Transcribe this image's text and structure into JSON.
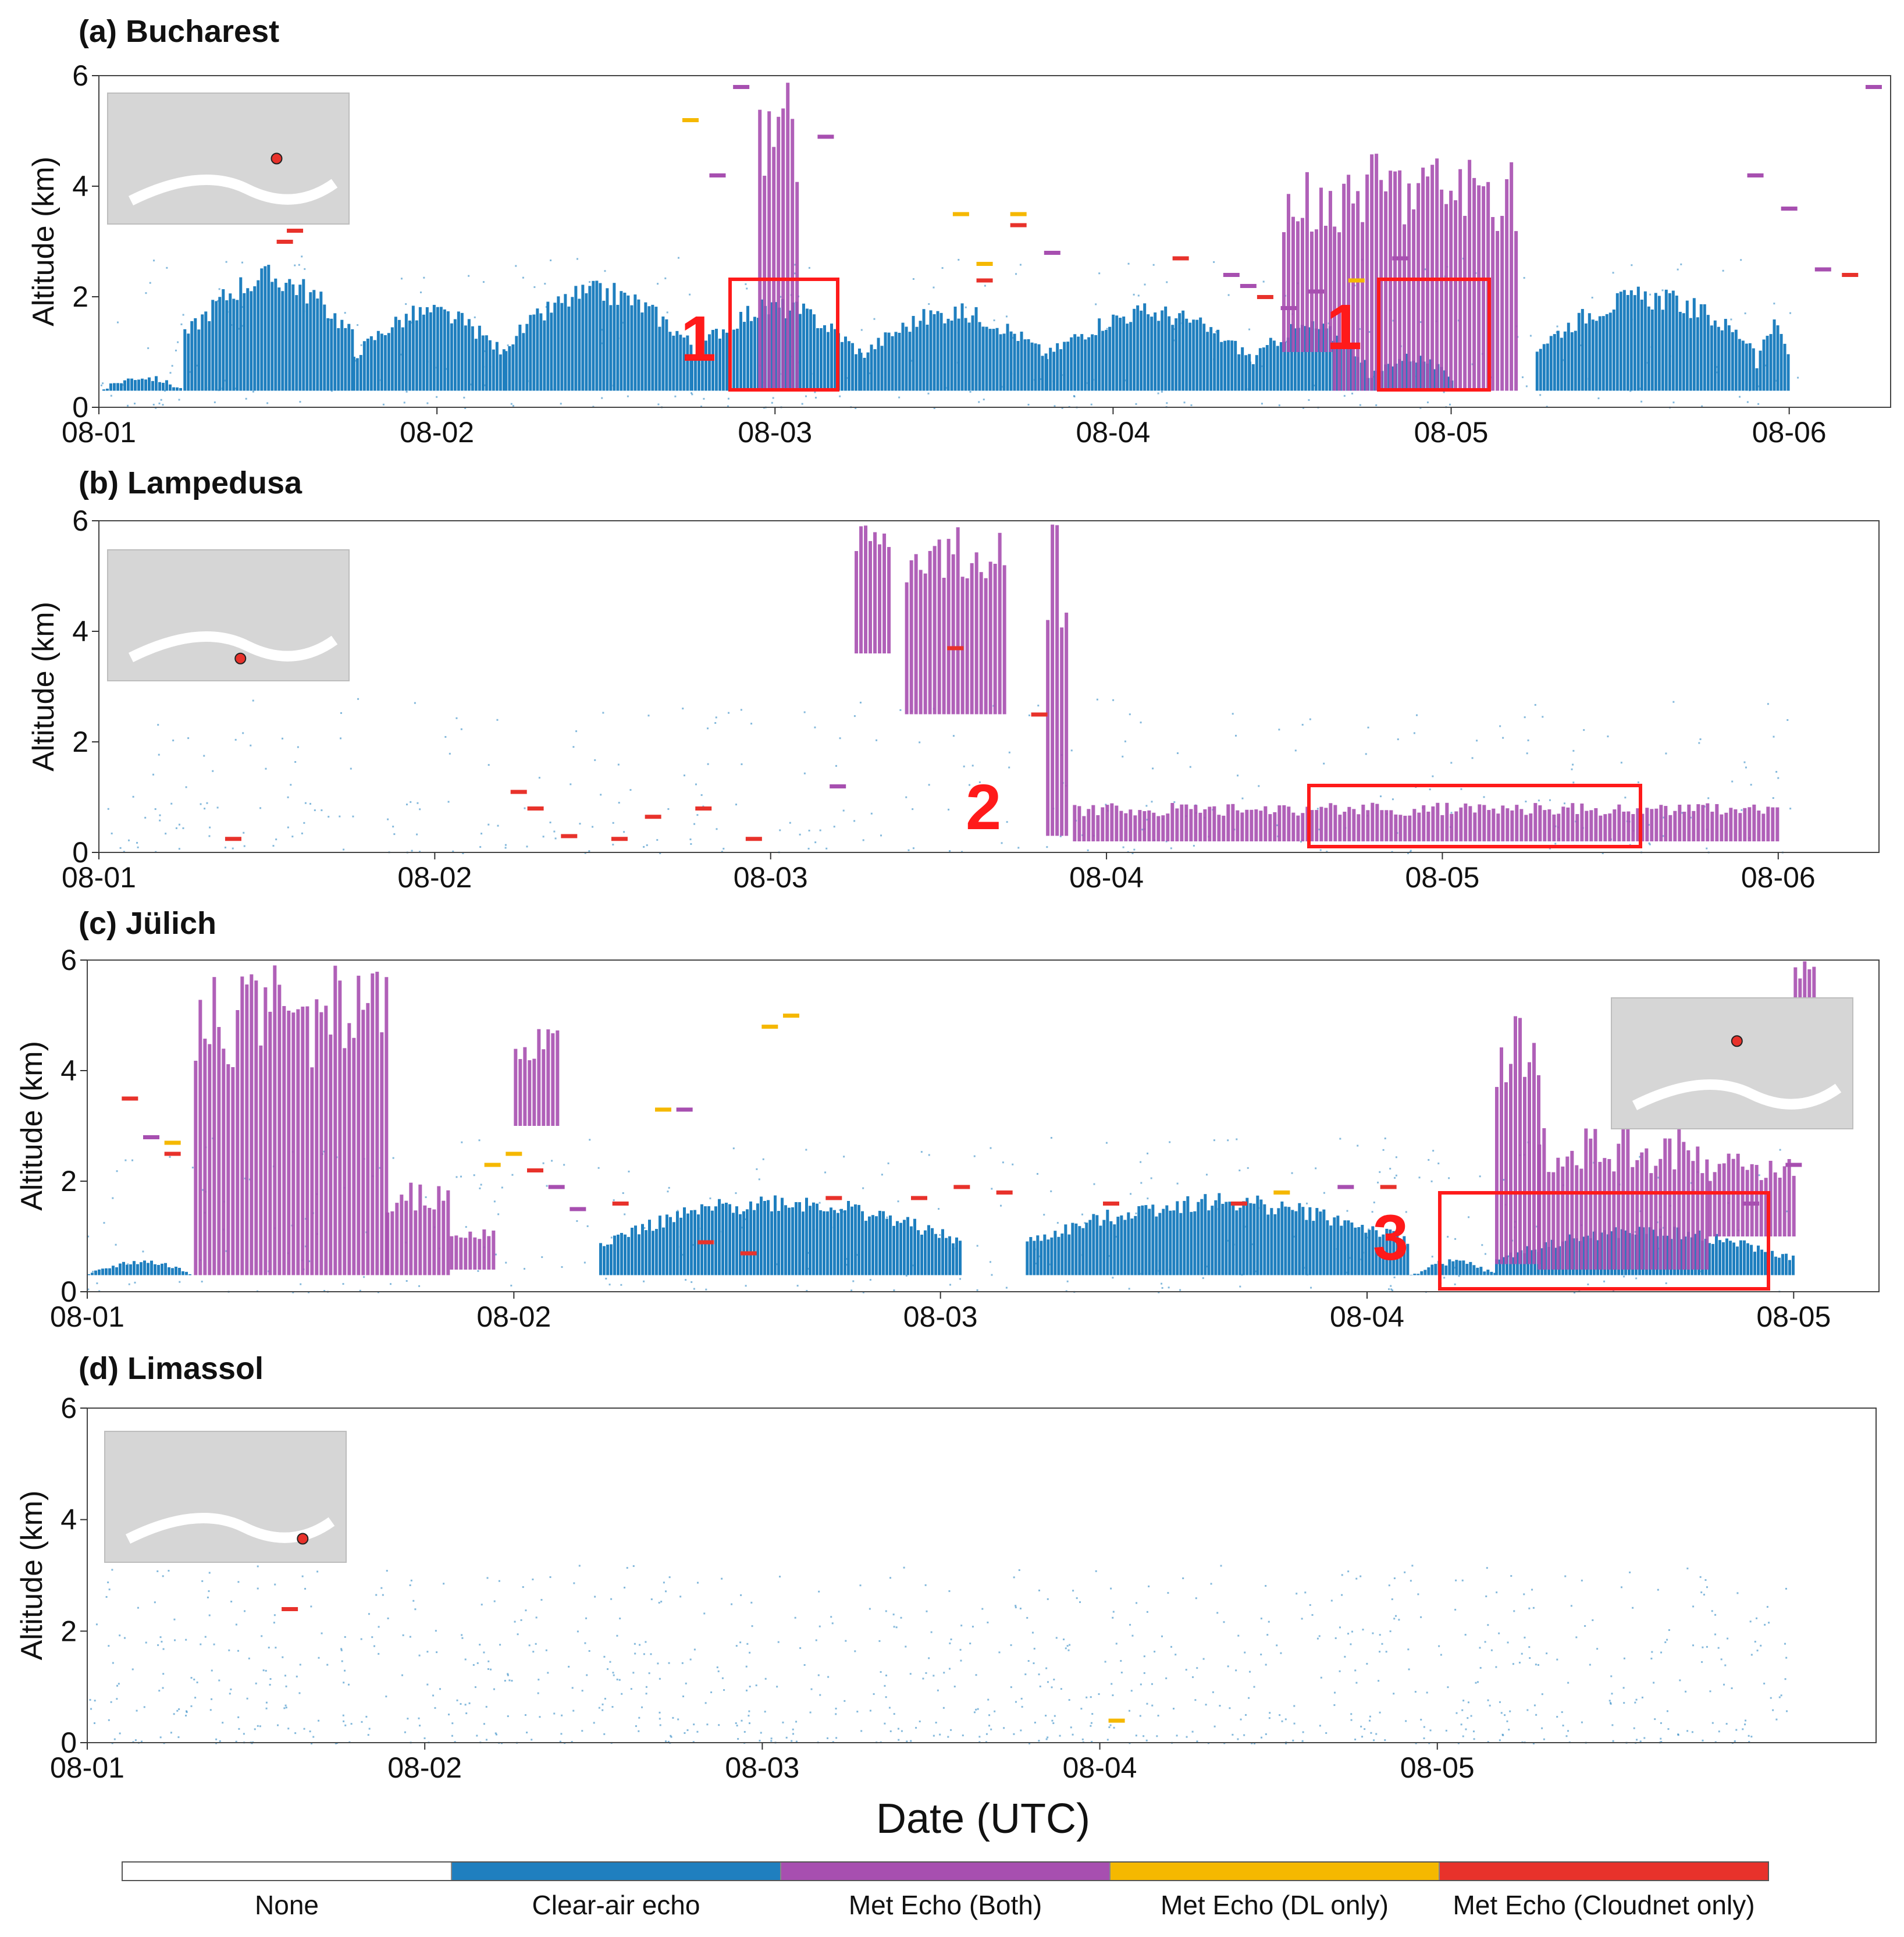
{
  "figure": {
    "xlabel": "Date (UTC)",
    "ylabel": "Altitude (km)"
  },
  "legend": [
    {
      "label": "None",
      "color": "#ffffff"
    },
    {
      "label": "Clear-air echo",
      "color": "#1f7fbf"
    },
    {
      "label": "Met Echo (Both)",
      "color": "#a74fb0"
    },
    {
      "label": "Met Echo (DL only)",
      "color": "#f5b800"
    },
    {
      "label": "Met Echo (Cloudnet only)",
      "color": "#e8322b"
    }
  ],
  "chart_data": [
    {
      "type": "heatmap",
      "title": "(a) Bucharest",
      "ylabel": "Altitude (km)",
      "x_ticks": [
        "08-01",
        "08-02",
        "08-03",
        "08-04",
        "08-05",
        "08-06"
      ],
      "xlim_days": [
        0,
        5.3
      ],
      "y_ticks": [
        0,
        2,
        4,
        6
      ],
      "ylim": [
        0,
        6
      ],
      "zoom_labels": [
        "1",
        "1"
      ],
      "clear_air_blocks": [
        {
          "x0": 0.0,
          "x1": 0.25,
          "top": 0.6
        },
        {
          "x0": 0.25,
          "x1": 0.75,
          "top": 2.6
        },
        {
          "x0": 0.75,
          "x1": 1.2,
          "top": 1.9
        },
        {
          "x0": 1.2,
          "x1": 1.75,
          "top": 2.3
        },
        {
          "x0": 1.75,
          "x1": 2.25,
          "top": 2.0
        },
        {
          "x0": 2.25,
          "x1": 2.8,
          "top": 1.9
        },
        {
          "x0": 2.8,
          "x1": 3.4,
          "top": 1.9
        },
        {
          "x0": 3.4,
          "x1": 3.75,
          "top": 1.6
        },
        {
          "x0": 3.75,
          "x1": 4.0,
          "top": 1.0
        },
        {
          "x0": 4.25,
          "x1": 4.9,
          "top": 2.2
        },
        {
          "x0": 4.9,
          "x1": 5.0,
          "top": 1.6
        }
      ],
      "met_both_blocks": [
        {
          "x0": 1.95,
          "x1": 2.07,
          "y0": 0.3,
          "top": 6.0
        },
        {
          "x0": 3.5,
          "x1": 3.65,
          "y0": 1.0,
          "top": 4.3
        },
        {
          "x0": 3.65,
          "x1": 4.2,
          "y0": 0.3,
          "top": 4.6
        }
      ],
      "markers": [
        {
          "x": 0.55,
          "y": 3.0,
          "category": "cloudnet"
        },
        {
          "x": 0.58,
          "y": 3.2,
          "category": "cloudnet"
        },
        {
          "x": 1.75,
          "y": 5.2,
          "category": "dl"
        },
        {
          "x": 1.83,
          "y": 4.2,
          "category": "both"
        },
        {
          "x": 1.9,
          "y": 5.8,
          "category": "both"
        },
        {
          "x": 2.15,
          "y": 4.9,
          "category": "both"
        },
        {
          "x": 2.55,
          "y": 3.5,
          "category": "dl"
        },
        {
          "x": 2.62,
          "y": 2.6,
          "category": "dl"
        },
        {
          "x": 2.62,
          "y": 2.3,
          "category": "cloudnet"
        },
        {
          "x": 2.72,
          "y": 3.5,
          "category": "dl"
        },
        {
          "x": 2.72,
          "y": 3.3,
          "category": "cloudnet"
        },
        {
          "x": 2.82,
          "y": 2.8,
          "category": "both"
        },
        {
          "x": 3.2,
          "y": 2.7,
          "category": "cloudnet"
        },
        {
          "x": 3.35,
          "y": 2.4,
          "category": "both"
        },
        {
          "x": 3.4,
          "y": 2.2,
          "category": "both"
        },
        {
          "x": 3.45,
          "y": 2.0,
          "category": "cloudnet"
        },
        {
          "x": 3.52,
          "y": 1.8,
          "category": "both"
        },
        {
          "x": 3.6,
          "y": 2.1,
          "category": "both"
        },
        {
          "x": 3.72,
          "y": 2.3,
          "category": "dl"
        },
        {
          "x": 3.85,
          "y": 2.7,
          "category": "both"
        },
        {
          "x": 4.9,
          "y": 4.2,
          "category": "both"
        },
        {
          "x": 5.0,
          "y": 3.6,
          "category": "both"
        },
        {
          "x": 5.1,
          "y": 2.5,
          "category": "both"
        },
        {
          "x": 5.18,
          "y": 2.4,
          "category": "cloudnet"
        },
        {
          "x": 5.25,
          "y": 5.8,
          "category": "both"
        }
      ],
      "location": "Bucharest"
    },
    {
      "type": "heatmap",
      "title": "(b) Lampedusa",
      "ylabel": "Altitude (km)",
      "x_ticks": [
        "08-01",
        "08-02",
        "08-03",
        "08-04",
        "08-05",
        "08-06"
      ],
      "xlim_days": [
        0,
        5.3
      ],
      "y_ticks": [
        0,
        2,
        4,
        6
      ],
      "ylim": [
        0,
        6
      ],
      "zoom_labels": [
        "2"
      ],
      "clear_air_blocks": [],
      "met_both_blocks": [
        {
          "x0": 2.25,
          "x1": 2.35,
          "y0": 3.6,
          "top": 6.0
        },
        {
          "x0": 2.4,
          "x1": 2.7,
          "y0": 2.5,
          "top": 6.0
        },
        {
          "x0": 2.82,
          "x1": 2.88,
          "y0": 0.3,
          "top": 6.0
        },
        {
          "x0": 2.9,
          "x1": 5.0,
          "y0": 0.2,
          "top": 0.9
        }
      ],
      "markers": [
        {
          "x": 0.4,
          "y": 0.25,
          "category": "cloudnet"
        },
        {
          "x": 1.25,
          "y": 1.1,
          "category": "cloudnet"
        },
        {
          "x": 1.3,
          "y": 0.8,
          "category": "cloudnet"
        },
        {
          "x": 1.4,
          "y": 0.3,
          "category": "cloudnet"
        },
        {
          "x": 1.55,
          "y": 0.25,
          "category": "cloudnet"
        },
        {
          "x": 1.65,
          "y": 0.65,
          "category": "cloudnet"
        },
        {
          "x": 1.8,
          "y": 0.8,
          "category": "cloudnet"
        },
        {
          "x": 1.95,
          "y": 0.25,
          "category": "cloudnet"
        },
        {
          "x": 2.2,
          "y": 1.2,
          "category": "both"
        },
        {
          "x": 2.55,
          "y": 3.7,
          "category": "cloudnet"
        },
        {
          "x": 2.8,
          "y": 2.5,
          "category": "cloudnet"
        }
      ],
      "location": "Lampedusa"
    },
    {
      "type": "heatmap",
      "title": "(c) Jülich",
      "ylabel": "Altitude (km)",
      "x_ticks": [
        "08-01",
        "08-02",
        "08-03",
        "08-04",
        "08-05"
      ],
      "xlim_days": [
        0,
        4.2
      ],
      "y_ticks": [
        0,
        2,
        4,
        6
      ],
      "ylim": [
        0,
        6
      ],
      "zoom_labels": [
        "3"
      ],
      "clear_air_blocks": [
        {
          "x0": 0.0,
          "x1": 0.25,
          "top": 0.6
        },
        {
          "x0": 1.2,
          "x1": 2.05,
          "top": 1.8
        },
        {
          "x0": 2.2,
          "x1": 3.1,
          "top": 1.8
        },
        {
          "x0": 3.1,
          "x1": 3.3,
          "top": 0.6
        },
        {
          "x0": 3.3,
          "x1": 4.0,
          "top": 1.2
        }
      ],
      "met_both_blocks": [
        {
          "x0": 0.25,
          "x1": 0.7,
          "y0": 0.3,
          "top": 6.0
        },
        {
          "x0": 0.7,
          "x1": 0.85,
          "y0": 0.3,
          "top": 2.0
        },
        {
          "x0": 0.85,
          "x1": 0.95,
          "y0": 0.4,
          "top": 1.2
        },
        {
          "x0": 1.0,
          "x1": 1.1,
          "y0": 3.0,
          "top": 4.8
        },
        {
          "x0": 3.3,
          "x1": 3.4,
          "y0": 0.5,
          "top": 5.0
        },
        {
          "x0": 3.4,
          "x1": 3.8,
          "y0": 0.4,
          "top": 3.0
        },
        {
          "x0": 3.8,
          "x1": 4.0,
          "y0": 1.0,
          "top": 2.5
        },
        {
          "x0": 4.0,
          "x1": 4.05,
          "y0": 5.0,
          "top": 6.0
        }
      ],
      "markers": [
        {
          "x": 0.1,
          "y": 3.5,
          "category": "cloudnet"
        },
        {
          "x": 0.15,
          "y": 2.8,
          "category": "both"
        },
        {
          "x": 0.2,
          "y": 2.7,
          "category": "dl"
        },
        {
          "x": 0.2,
          "y": 2.5,
          "category": "cloudnet"
        },
        {
          "x": 0.95,
          "y": 2.3,
          "category": "dl"
        },
        {
          "x": 1.0,
          "y": 2.5,
          "category": "dl"
        },
        {
          "x": 1.05,
          "y": 2.2,
          "category": "cloudnet"
        },
        {
          "x": 1.1,
          "y": 1.9,
          "category": "both"
        },
        {
          "x": 1.15,
          "y": 1.5,
          "category": "both"
        },
        {
          "x": 1.25,
          "y": 1.6,
          "category": "cloudnet"
        },
        {
          "x": 1.35,
          "y": 3.3,
          "category": "dl"
        },
        {
          "x": 1.4,
          "y": 3.3,
          "category": "both"
        },
        {
          "x": 1.45,
          "y": 0.9,
          "category": "cloudnet"
        },
        {
          "x": 1.55,
          "y": 0.7,
          "category": "cloudnet"
        },
        {
          "x": 1.6,
          "y": 4.8,
          "category": "dl"
        },
        {
          "x": 1.65,
          "y": 5.0,
          "category": "dl"
        },
        {
          "x": 1.75,
          "y": 1.7,
          "category": "cloudnet"
        },
        {
          "x": 1.95,
          "y": 1.7,
          "category": "cloudnet"
        },
        {
          "x": 2.05,
          "y": 1.9,
          "category": "cloudnet"
        },
        {
          "x": 2.15,
          "y": 1.8,
          "category": "cloudnet"
        },
        {
          "x": 2.4,
          "y": 1.6,
          "category": "cloudnet"
        },
        {
          "x": 2.7,
          "y": 1.6,
          "category": "cloudnet"
        },
        {
          "x": 2.8,
          "y": 1.8,
          "category": "dl"
        },
        {
          "x": 2.95,
          "y": 1.9,
          "category": "both"
        },
        {
          "x": 3.05,
          "y": 1.9,
          "category": "cloudnet"
        },
        {
          "x": 3.9,
          "y": 1.6,
          "category": "both"
        },
        {
          "x": 4.0,
          "y": 2.3,
          "category": "both"
        }
      ],
      "location": "Jülich"
    },
    {
      "type": "heatmap",
      "title": "(d) Limassol",
      "ylabel": "Altitude (km)",
      "x_ticks": [
        "08-01",
        "08-02",
        "08-03",
        "08-04",
        "08-05"
      ],
      "xlim_days": [
        0,
        5.3
      ],
      "y_ticks": [
        0,
        2,
        4,
        6
      ],
      "ylim": [
        0,
        6
      ],
      "zoom_labels": [],
      "clear_air_blocks": [],
      "met_both_blocks": [],
      "markers": [
        {
          "x": 0.6,
          "y": 2.4,
          "category": "cloudnet"
        },
        {
          "x": 3.05,
          "y": 0.4,
          "category": "dl"
        }
      ],
      "location": "Limassol"
    }
  ]
}
